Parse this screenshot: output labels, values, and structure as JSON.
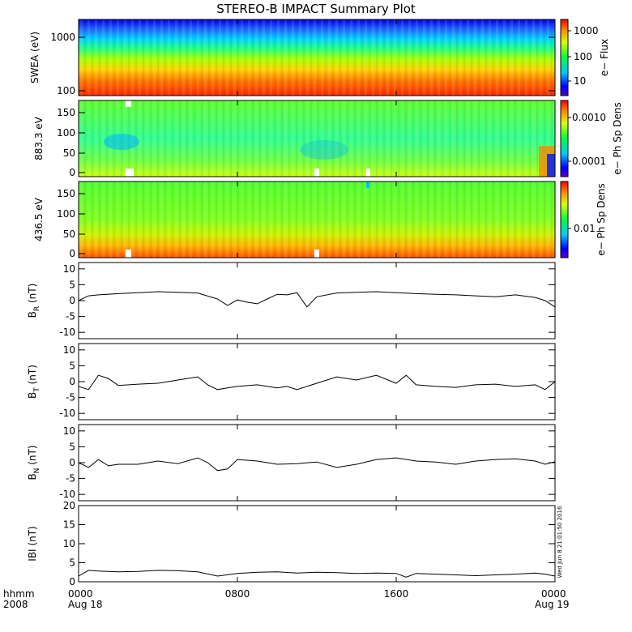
{
  "title": "STEREO-B IMPACT Summary Plot",
  "x_axis": {
    "corner_label_top": "hhmm",
    "corner_label_bottom": "2008",
    "ticks": [
      {
        "top": "0000",
        "bottom": "Aug 18"
      },
      {
        "top": "0800",
        "bottom": ""
      },
      {
        "top": "1600",
        "bottom": ""
      },
      {
        "top": "0000",
        "bottom": "Aug 19"
      }
    ]
  },
  "timestamp": "Wed Jun  8 21:01:50 2016",
  "colors": {
    "line": "#000000",
    "background": "#ffffff"
  },
  "chart_data": [
    {
      "type": "heatmap",
      "ylabel": "SWEA (eV)",
      "y_scale": "log",
      "ylim": [
        100,
        2000
      ],
      "yticks": [
        "1000",
        "100"
      ],
      "colorbar": {
        "label": "e− Flux",
        "scale": "log",
        "ticks": [
          "1000",
          "100",
          "10"
        ]
      }
    },
    {
      "type": "heatmap",
      "ylabel": "883.3 eV",
      "ylim": [
        0,
        180
      ],
      "yticks": [
        "150",
        "100",
        "50",
        "0"
      ],
      "colorbar": {
        "label": "e− Ph Sp Dens",
        "scale": "log",
        "ticks": [
          "0.0010",
          "0.0001"
        ]
      }
    },
    {
      "type": "heatmap",
      "ylabel": "436.5 eV",
      "ylim": [
        0,
        180
      ],
      "yticks": [
        "150",
        "100",
        "50",
        "0"
      ],
      "colorbar": {
        "label": "e− Ph Sp Dens",
        "scale": "log",
        "ticks": [
          "0.01"
        ]
      }
    },
    {
      "type": "line",
      "ylabel": "B",
      "ylabel_sub": "R",
      "ylabel_unit": "(nT)",
      "ylim": [
        -12,
        12
      ],
      "yticks": [
        "10",
        "5",
        "0",
        "-5",
        "-10"
      ],
      "x_hours": [
        0,
        0.5,
        1,
        2,
        3,
        4,
        5,
        6,
        7,
        7.5,
        8,
        8.5,
        9,
        9.5,
        10,
        10.5,
        11,
        11.5,
        12,
        13,
        14,
        15,
        16,
        17,
        18,
        19,
        20,
        21,
        22,
        23,
        23.5,
        24
      ],
      "values": [
        0,
        1.5,
        1.8,
        2.2,
        2.5,
        2.8,
        2.6,
        2.4,
        0.5,
        -1.5,
        0.2,
        -0.5,
        -1,
        0.5,
        2,
        1.8,
        2.5,
        -2,
        1.2,
        2.4,
        2.6,
        2.8,
        2.5,
        2.2,
        2.0,
        1.8,
        1.5,
        1.2,
        1.8,
        1.0,
        0,
        -2
      ]
    },
    {
      "type": "line",
      "ylabel": "B",
      "ylabel_sub": "T",
      "ylabel_unit": "(nT)",
      "ylim": [
        -12,
        12
      ],
      "yticks": [
        "10",
        "5",
        "0",
        "-5",
        "-10"
      ],
      "x_hours": [
        0,
        0.5,
        1,
        1.5,
        2,
        3,
        4,
        5,
        6,
        6.5,
        7,
        7.5,
        8,
        9,
        10,
        10.5,
        11,
        12,
        13,
        14,
        15,
        16,
        16.5,
        17,
        18,
        19,
        20,
        21,
        22,
        23,
        23.5,
        24
      ],
      "values": [
        -1.5,
        -2.5,
        2.0,
        1.0,
        -1.2,
        -0.8,
        -0.5,
        0.5,
        1.5,
        -1.0,
        -2.5,
        -2.0,
        -1.5,
        -1.0,
        -2.0,
        -1.5,
        -2.5,
        -0.5,
        1.5,
        0.5,
        2.0,
        -0.5,
        2.0,
        -1.0,
        -1.5,
        -1.8,
        -1.0,
        -0.8,
        -1.5,
        -1.0,
        -2.5,
        0
      ]
    },
    {
      "type": "line",
      "ylabel": "B",
      "ylabel_sub": "N",
      "ylabel_unit": "(nT)",
      "ylim": [
        -12,
        12
      ],
      "yticks": [
        "10",
        "5",
        "0",
        "-5",
        "-10"
      ],
      "x_hours": [
        0,
        0.5,
        1,
        1.5,
        2,
        3,
        4,
        5,
        6,
        6.5,
        7,
        7.5,
        8,
        9,
        10,
        11,
        12,
        13,
        14,
        15,
        16,
        17,
        18,
        19,
        20,
        21,
        22,
        23,
        23.5,
        24
      ],
      "values": [
        0,
        -1.5,
        1.0,
        -1.0,
        -0.5,
        -0.5,
        0.5,
        -0.3,
        1.5,
        0,
        -2.5,
        -2.0,
        1.0,
        0.5,
        -0.5,
        -0.3,
        0.2,
        -1.5,
        -0.5,
        1.0,
        1.5,
        0.5,
        0.2,
        -0.5,
        0.5,
        1.0,
        1.2,
        0.5,
        -0.5,
        0.3
      ]
    },
    {
      "type": "line",
      "ylabel": "IBI",
      "ylabel_unit": "(nT)",
      "ylim": [
        0,
        20
      ],
      "yticks": [
        "20",
        "15",
        "10",
        "5",
        "0"
      ],
      "x_hours": [
        0,
        0.5,
        1,
        2,
        3,
        4,
        5,
        6,
        7,
        8,
        9,
        10,
        11,
        12,
        13,
        14,
        15,
        16,
        16.5,
        17,
        18,
        19,
        20,
        21,
        22,
        23,
        23.5,
        24
      ],
      "values": [
        1.5,
        3.0,
        2.8,
        2.6,
        2.7,
        3.0,
        2.9,
        2.6,
        1.5,
        2.2,
        2.5,
        2.6,
        2.3,
        2.5,
        2.4,
        2.2,
        2.3,
        2.2,
        1.2,
        2.2,
        2.0,
        1.8,
        1.6,
        1.8,
        2.0,
        2.3,
        2.0,
        1.5
      ]
    }
  ]
}
